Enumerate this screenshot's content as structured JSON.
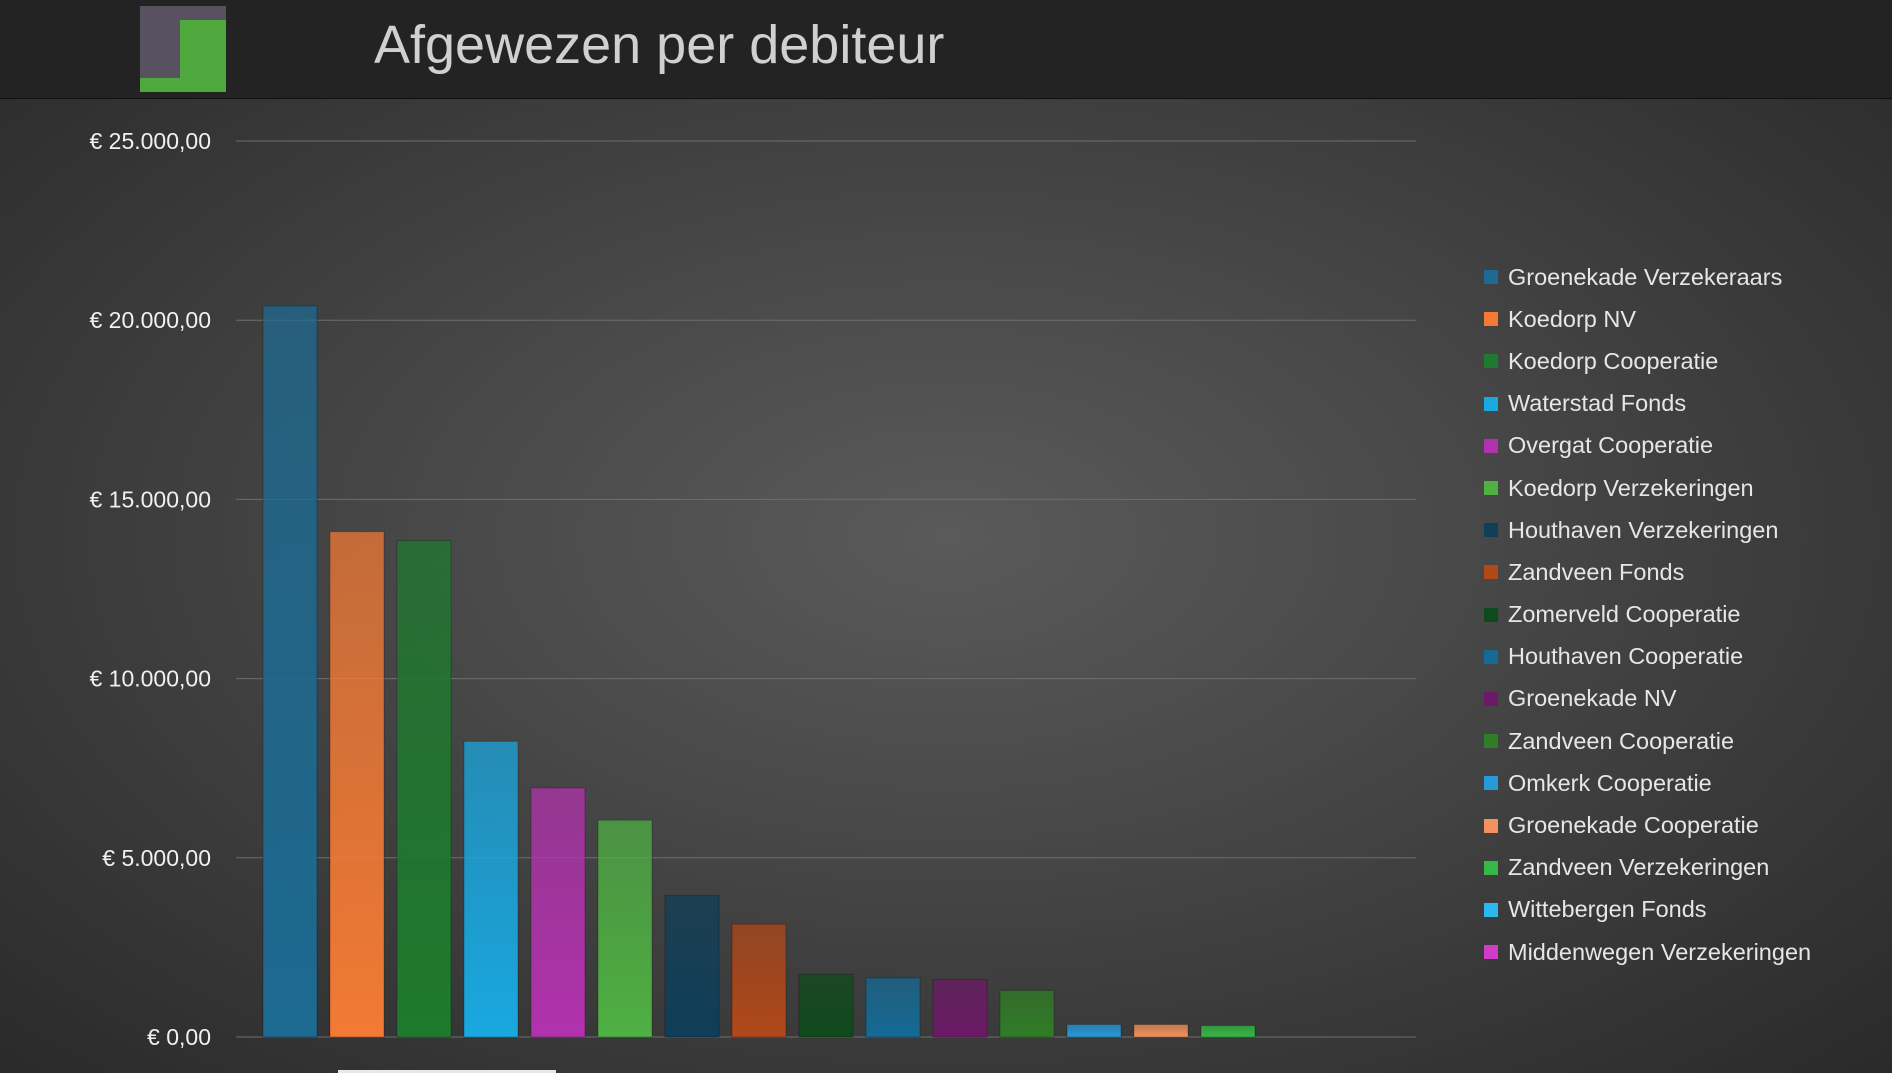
{
  "page": {
    "title": "Afgewezen per debiteur"
  },
  "logo": {
    "icon": "company-logo-icon",
    "colors": {
      "back": "#585260",
      "front": "#4ea83e"
    }
  },
  "chart_data": {
    "type": "bar",
    "title": "",
    "xlabel": "",
    "ylabel": "",
    "ylim": [
      0,
      25000
    ],
    "yticks": [
      "€ 0,00",
      "€ 5.000,00",
      "€ 10.000,00",
      "€ 15.000,00",
      "€ 20.000,00",
      "€ 25.000,00"
    ],
    "ytick_values": [
      0,
      5000,
      10000,
      15000,
      20000,
      25000
    ],
    "grid": true,
    "legend_position": "right",
    "categories": [
      "Groenekade Verzekeraars",
      "Koedorp NV",
      "Koedorp Cooperatie",
      "Waterstad Fonds",
      "Overgat Cooperatie",
      "Koedorp Verzekeringen",
      "Houthaven Verzekeringen",
      "Zandveen Fonds",
      "Zomerveld Cooperatie",
      "Houthaven Cooperatie",
      "Groenekade NV",
      "Zandveen Cooperatie",
      "Omkerk Cooperatie",
      "Groenekade Cooperatie",
      "Zandveen Verzekeringen",
      "Wittebergen Fonds",
      "Middenwegen Verzekeringen"
    ],
    "values": [
      20400,
      14100,
      13850,
      8250,
      6950,
      6050,
      3950,
      3150,
      1750,
      1650,
      1600,
      1300,
      350,
      350,
      320,
      0,
      0
    ],
    "colors": [
      "#1d6a92",
      "#f37a35",
      "#1e7a2e",
      "#19a8e0",
      "#b232ad",
      "#4fb043",
      "#0f3e58",
      "#b0481a",
      "#0f4a1c",
      "#156a96",
      "#6b1a66",
      "#2f7d26",
      "#2699d8",
      "#f3925c",
      "#35b845",
      "#2bb8ef",
      "#d03cc8"
    ]
  }
}
